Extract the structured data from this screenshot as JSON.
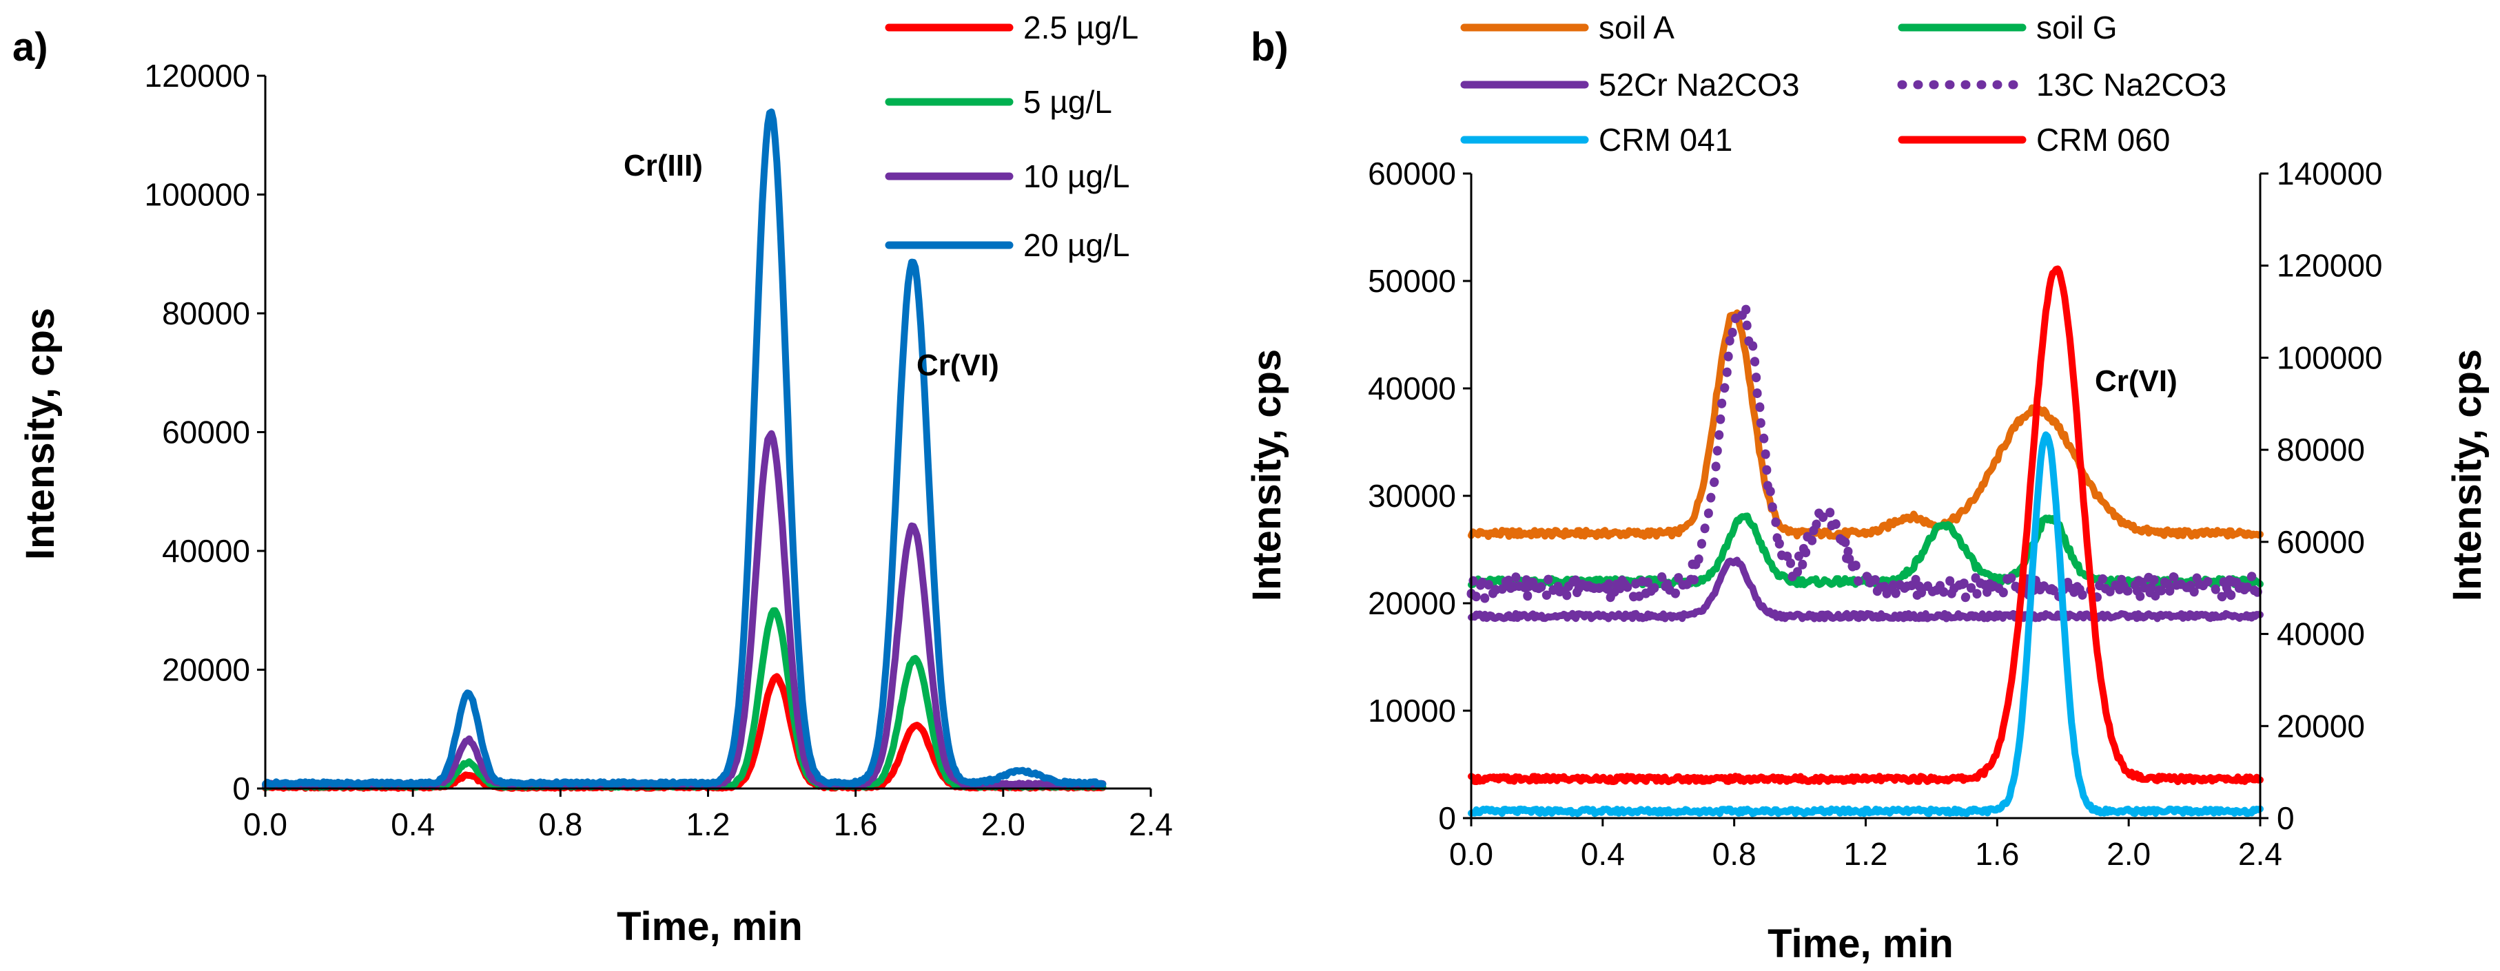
{
  "chart_data": [
    {
      "type": "line",
      "panel_label": "a)",
      "xlabel": "Time, min",
      "ylabel": "Intensity, cps",
      "xlim": [
        0.0,
        2.4
      ],
      "ylim": [
        0,
        120000
      ],
      "x_ticks": [
        "0.0",
        "0.4",
        "0.8",
        "1.2",
        "1.6",
        "2.0",
        "2.4"
      ],
      "y_ticks": [
        "0",
        "20000",
        "40000",
        "60000",
        "80000",
        "100000",
        "120000"
      ],
      "grid": false,
      "legend_position": "top-right",
      "annotations": [
        {
          "text": "Cr(III)",
          "x": 1.2,
          "y": 103000
        },
        {
          "text": "Cr(VI)",
          "x": 1.8,
          "y": 70000
        }
      ],
      "series": [
        {
          "name": "2.5 µg/L",
          "color": "#ff0000",
          "baseline": 200,
          "peaks": [
            [
              0.55,
              2000,
              0.028
            ],
            [
              1.385,
              18500,
              0.038
            ],
            [
              1.765,
              10500,
              0.038
            ]
          ]
        },
        {
          "name": "5 µg/L",
          "color": "#00b050",
          "baseline": 400,
          "peaks": [
            [
              0.55,
              4000,
              0.028
            ],
            [
              1.38,
              29500,
              0.038
            ],
            [
              1.76,
              21500,
              0.038
            ]
          ]
        },
        {
          "name": "10 µg/L",
          "color": "#7030a0",
          "baseline": 700,
          "peaks": [
            [
              0.55,
              7500,
              0.028
            ],
            [
              1.37,
              59000,
              0.04
            ],
            [
              1.755,
              43500,
              0.04
            ]
          ]
        },
        {
          "name": "20 µg/L",
          "color": "#0070c0",
          "baseline": 900,
          "peaks": [
            [
              0.55,
              15000,
              0.03
            ],
            [
              1.37,
              113000,
              0.042
            ],
            [
              1.755,
              88000,
              0.042
            ],
            [
              2.05,
              2000,
              0.05
            ]
          ]
        }
      ]
    },
    {
      "type": "line",
      "panel_label": "b)",
      "xlabel": "Time, min",
      "ylabel": "Intensity, cps",
      "y2label": "Intensity, cps",
      "xlim": [
        0.0,
        2.4
      ],
      "ylim": [
        0,
        60000
      ],
      "y2lim": [
        0,
        140000
      ],
      "x_ticks": [
        "0.0",
        "0.4",
        "0.8",
        "1.2",
        "1.6",
        "2.0",
        "2.4"
      ],
      "y_ticks": [
        "0",
        "10000",
        "20000",
        "30000",
        "40000",
        "50000",
        "60000"
      ],
      "y2_ticks": [
        "0",
        "20000",
        "40000",
        "60000",
        "80000",
        "100000",
        "120000",
        "140000"
      ],
      "grid": false,
      "legend_position": "top",
      "annotations": [
        {
          "text": "Cr(VI)",
          "x": 2.03,
          "y": 40000
        }
      ],
      "series": [
        {
          "name": "soil A",
          "color": "#e46c0a",
          "style": "solid",
          "axis": "left",
          "baseline": 26500,
          "peaks": [
            [
              0.8,
              20500,
              0.055
            ],
            [
              1.33,
              1500,
              0.05
            ],
            [
              1.72,
              11500,
              0.12
            ]
          ]
        },
        {
          "name": "soil G",
          "color": "#00b050",
          "style": "solid",
          "axis": "left",
          "baseline": 22000,
          "peaks": [
            [
              0.83,
              6000,
              0.05
            ],
            [
              1.44,
              5200,
              0.06
            ],
            [
              1.76,
              6000,
              0.05
            ]
          ]
        },
        {
          "name": "52Cr Na2CO3",
          "color": "#7030a0",
          "style": "solid",
          "axis": "left",
          "baseline": 18800,
          "peaks": [
            [
              0.8,
              5200,
              0.045
            ]
          ]
        },
        {
          "name": "13C Na2CO3",
          "color": "#7030a0",
          "style": "dotted",
          "axis": "left",
          "baseline": 21500,
          "peaks": [
            [
              0.82,
              26000,
              0.06
            ],
            [
              1.08,
              7000,
              0.05
            ]
          ]
        },
        {
          "name": "CRM 041",
          "color": "#00b0f0",
          "style": "solid",
          "axis": "right",
          "baseline": 1500,
          "peaks": [
            [
              1.75,
              82000,
              0.045
            ]
          ]
        },
        {
          "name": "CRM 060",
          "color": "#ff0000",
          "style": "solid",
          "axis": "right",
          "baseline": 8500,
          "peaks": [
            [
              1.78,
              111000,
              0.075
            ]
          ]
        }
      ]
    }
  ]
}
